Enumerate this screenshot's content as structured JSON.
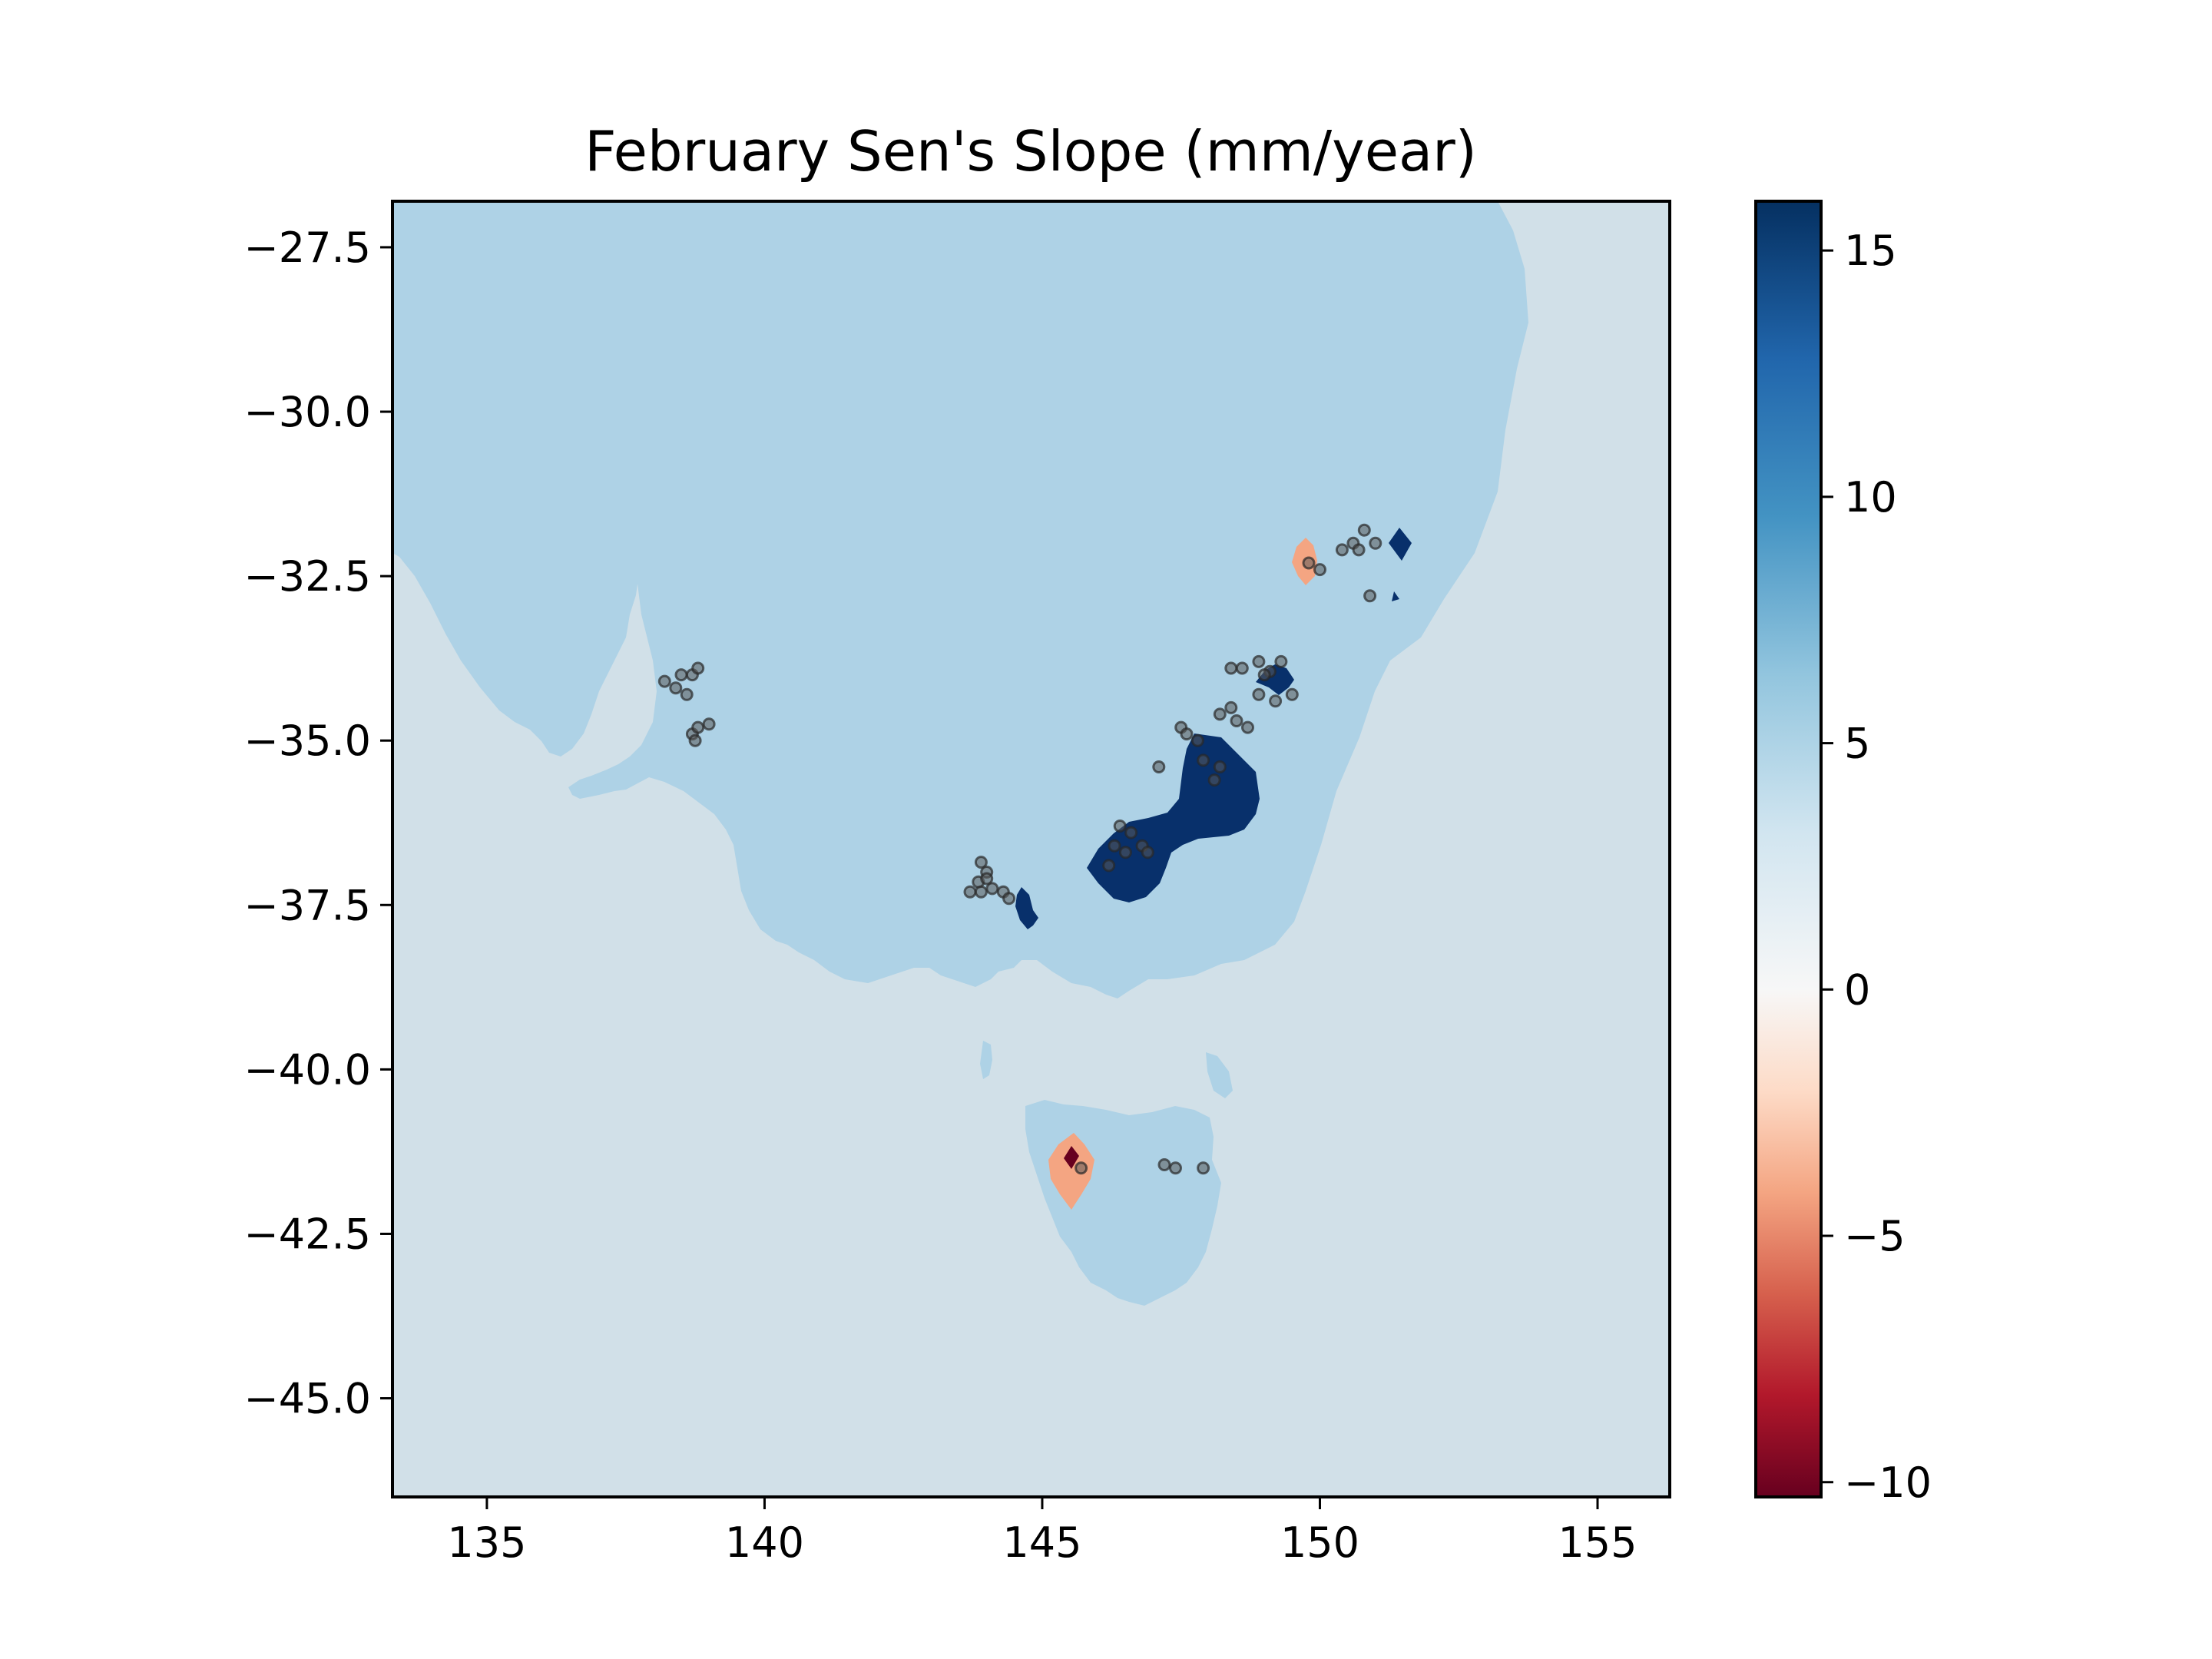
{
  "chart_data": {
    "type": "heatmap",
    "title": "February Sen's Slope (mm/year)",
    "xlabel": "",
    "ylabel": "",
    "xlim": [
      133.3,
      156.3
    ],
    "ylim": [
      -46.5,
      -26.8
    ],
    "xticks": [
      135,
      140,
      145,
      150,
      155
    ],
    "xtick_labels": [
      "135",
      "140",
      "145",
      "150",
      "155"
    ],
    "yticks": [
      -27.5,
      -30.0,
      -32.5,
      -35.0,
      -37.5,
      -40.0,
      -42.5,
      -45.0
    ],
    "ytick_labels": [
      "−27.5",
      "−30.0",
      "−32.5",
      "−35.0",
      "−37.5",
      "−40.0",
      "−42.5",
      "−45.0"
    ],
    "colorbar": {
      "colormap": "RdBu",
      "vmin": -10.3,
      "vmax": 16.0,
      "ticks": [
        15,
        10,
        5,
        0,
        -5,
        -10
      ],
      "tick_labels": [
        "15",
        "10",
        "5",
        "0",
        "−5",
        "−10"
      ],
      "stops": [
        "#67001f",
        "#b2182b",
        "#d6604d",
        "#f4a582",
        "#fddbc7",
        "#f7f7f7",
        "#d1e5f0",
        "#92c5de",
        "#4393c3",
        "#2166ac",
        "#053061"
      ]
    },
    "background_colors": {
      "ocean": "#d1e0e8",
      "land": "#aed2e6"
    },
    "field_colors": {
      "high": "#08306b",
      "low": "#f4a582",
      "min": "#67001f"
    },
    "stations": [
      [
        138.2,
        -34.1
      ],
      [
        138.4,
        -34.2
      ],
      [
        138.6,
        -34.3
      ],
      [
        138.7,
        -34.0
      ],
      [
        138.8,
        -33.9
      ],
      [
        138.5,
        -34.0
      ],
      [
        138.7,
        -34.9
      ],
      [
        138.8,
        -34.8
      ],
      [
        139.0,
        -34.75
      ],
      [
        138.75,
        -35.0
      ],
      [
        143.9,
        -36.85
      ],
      [
        144.0,
        -37.0
      ],
      [
        143.85,
        -37.15
      ],
      [
        143.7,
        -37.3
      ],
      [
        143.9,
        -37.3
      ],
      [
        144.1,
        -37.25
      ],
      [
        144.3,
        -37.3
      ],
      [
        144.4,
        -37.4
      ],
      [
        144.0,
        -37.1
      ],
      [
        146.4,
        -36.3
      ],
      [
        146.6,
        -36.4
      ],
      [
        146.3,
        -36.6
      ],
      [
        146.5,
        -36.7
      ],
      [
        146.8,
        -36.6
      ],
      [
        146.9,
        -36.7
      ],
      [
        146.2,
        -36.9
      ],
      [
        147.1,
        -35.4
      ],
      [
        147.5,
        -34.8
      ],
      [
        147.6,
        -34.9
      ],
      [
        147.8,
        -35.0
      ],
      [
        147.9,
        -35.3
      ],
      [
        148.2,
        -35.4
      ],
      [
        148.1,
        -35.6
      ],
      [
        148.2,
        -34.6
      ],
      [
        148.4,
        -34.5
      ],
      [
        148.5,
        -34.7
      ],
      [
        148.7,
        -34.8
      ],
      [
        148.9,
        -34.3
      ],
      [
        148.4,
        -33.9
      ],
      [
        148.6,
        -33.9
      ],
      [
        148.9,
        -33.8
      ],
      [
        149.1,
        -33.95
      ],
      [
        149.3,
        -33.8
      ],
      [
        149.2,
        -34.4
      ],
      [
        149.5,
        -34.3
      ],
      [
        149.0,
        -34.0
      ],
      [
        149.8,
        -32.3
      ],
      [
        150.0,
        -32.4
      ],
      [
        150.4,
        -32.1
      ],
      [
        150.6,
        -32.0
      ],
      [
        150.7,
        -32.1
      ],
      [
        150.8,
        -31.8
      ],
      [
        151.0,
        -32.0
      ],
      [
        150.9,
        -32.8
      ],
      [
        145.7,
        -41.5
      ],
      [
        147.2,
        -41.45
      ],
      [
        147.4,
        -41.5
      ],
      [
        147.9,
        -41.5
      ]
    ]
  }
}
